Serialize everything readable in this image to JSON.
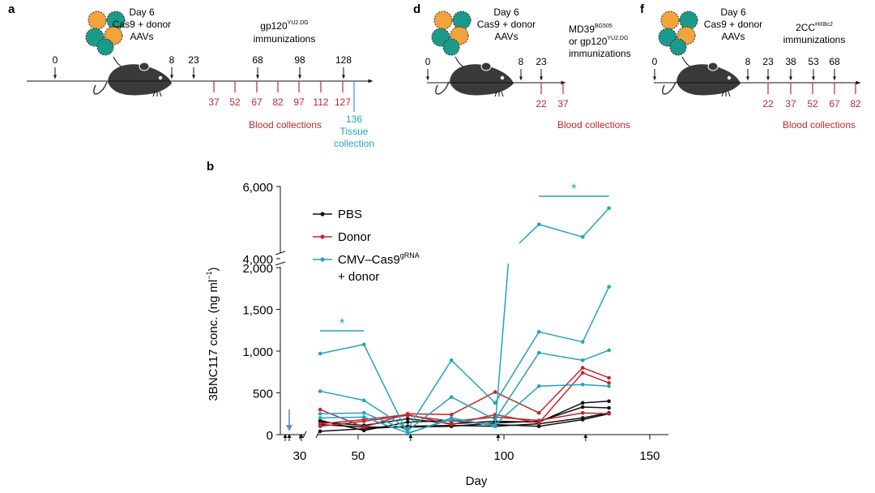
{
  "colors": {
    "black": "#111111",
    "red": "#c0272d",
    "teal": "#24a3bd",
    "blue_arrow": "#5b8fd6",
    "mouse": "#3a3a3a",
    "cell_orange": "#f2a33a",
    "cell_teal": "#1a9a8b"
  },
  "panels": {
    "a": {
      "letter": "a",
      "setup": [
        "Day 6",
        "Cas9 + donor",
        "AAVs"
      ],
      "immunization_label": "gp120",
      "immunization_sup": "YU2.DG",
      "immunization_label2": "immunizations",
      "top_days": [
        "0",
        "8",
        "23",
        "68",
        "98",
        "128"
      ],
      "blood_days": [
        "37",
        "52",
        "67",
        "82",
        "97",
        "112",
        "127"
      ],
      "blood_label": "Blood collections",
      "tissue_day": "136",
      "tissue_label": [
        "Tissue",
        "collection"
      ]
    },
    "d": {
      "letter": "d",
      "setup": [
        "Day 6",
        "Cas9 + donor",
        "AAVs"
      ],
      "immunization_line1": "MD39",
      "immunization_sup1": "BG505",
      "immunization_line2": "or gp120",
      "immunization_sup2": "YU2.DG",
      "immunization_line3": "immunizations",
      "top_days": [
        "0",
        "8",
        "23"
      ],
      "blood_days": [
        "22",
        "37"
      ],
      "blood_label": "Blood collections"
    },
    "f": {
      "letter": "f",
      "setup": [
        "Day 6",
        "Cas9 + donor",
        "AAVs"
      ],
      "immunization_label": "2CC",
      "immunization_sup": "HXBc2",
      "immunization_label2": "immunizations",
      "top_days": [
        "0",
        "8",
        "23",
        "38",
        "53",
        "68"
      ],
      "blood_days": [
        "22",
        "37",
        "52",
        "67",
        "82"
      ],
      "blood_label": "Blood collections"
    }
  },
  "chart_data": {
    "panel_letter": "b",
    "type": "line",
    "xlabel": "Day",
    "ylabel": "3BNC117 conc. (ng ml",
    "ylabel_sup": "−1",
    "ylabel_end": ")",
    "x_ticks": [
      "30",
      "50",
      "100",
      "150"
    ],
    "y_ticks_lower": [
      "0",
      "500",
      "1,000",
      "1,500",
      "2,000"
    ],
    "y_ticks_upper": [
      "4,000",
      "6,000"
    ],
    "ylim_lower": [
      0,
      2000
    ],
    "ylim_upper": [
      4000,
      6000
    ],
    "legend": [
      {
        "name": "PBS",
        "color": "black"
      },
      {
        "name": "Donor",
        "color": "red"
      },
      {
        "name": "CMV–Cas9",
        "sup": "gRNA",
        "name2": "+ donor",
        "color": "teal"
      }
    ],
    "significance": [
      {
        "label": "*",
        "x_start": 37,
        "x_end": 52
      },
      {
        "label": "*",
        "x_start": 112,
        "x_end": 136
      }
    ],
    "immunization_days": [
      8,
      23,
      68,
      98,
      128
    ],
    "aav_day": 6,
    "x": [
      37,
      52,
      67,
      82,
      97,
      112,
      127,
      136
    ],
    "series": [
      {
        "name": "PBS",
        "color": "black",
        "values": [
          150,
          110,
          190,
          130,
          160,
          150,
          380,
          400
        ]
      },
      {
        "name": "PBS",
        "color": "black",
        "values": [
          120,
          90,
          90,
          100,
          140,
          160,
          330,
          320
        ]
      },
      {
        "name": "PBS",
        "color": "black",
        "values": [
          40,
          70,
          100,
          110,
          100,
          130,
          200,
          260
        ]
      },
      {
        "name": "PBS",
        "color": "black",
        "values": [
          170,
          50,
          150,
          170,
          120,
          100,
          180,
          250
        ]
      },
      {
        "name": "Donor",
        "color": "red",
        "values": [
          300,
          90,
          250,
          240,
          510,
          260,
          800,
          680
        ]
      },
      {
        "name": "Donor",
        "color": "red",
        "values": [
          130,
          180,
          240,
          120,
          240,
          140,
          740,
          620
        ]
      },
      {
        "name": "Donor",
        "color": "red",
        "values": [
          100,
          160,
          230,
          160,
          210,
          170,
          260,
          250
        ]
      },
      {
        "name": "CMV–Cas9 gRNA + donor",
        "color": "teal",
        "values": [
          970,
          1080,
          10,
          200,
          100,
          4950,
          4600,
          5400
        ]
      },
      {
        "name": "CMV–Cas9 gRNA + donor",
        "color": "teal",
        "values": [
          520,
          410,
          70,
          890,
          380,
          1230,
          1110,
          1770
        ]
      },
      {
        "name": "CMV–Cas9 gRNA + donor",
        "color": "teal",
        "values": [
          250,
          260,
          50,
          450,
          180,
          980,
          890,
          1010
        ]
      },
      {
        "name": "CMV–Cas9 gRNA + donor",
        "color": "teal",
        "values": [
          200,
          210,
          20,
          180,
          120,
          580,
          600,
          580
        ]
      }
    ]
  }
}
